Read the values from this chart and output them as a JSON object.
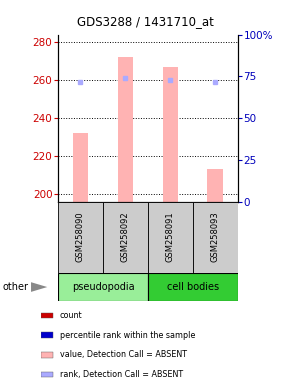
{
  "title": "GDS3288 / 1431710_at",
  "samples": [
    "GSM258090",
    "GSM258092",
    "GSM258091",
    "GSM258093"
  ],
  "bar_values": [
    232,
    272,
    267,
    213
  ],
  "rank_values": [
    259,
    261,
    260,
    259
  ],
  "bar_color": "#ffb3b3",
  "rank_color": "#aaaaff",
  "ylim_left": [
    196,
    284
  ],
  "ylim_right": [
    0,
    100
  ],
  "yticks_left": [
    200,
    220,
    240,
    260,
    280
  ],
  "yticks_right": [
    0,
    25,
    50,
    75,
    100
  ],
  "ytick_labels_right": [
    "0",
    "25",
    "50",
    "75",
    "100%"
  ],
  "group_colors": {
    "pseudopodia": "#99ee99",
    "cell bodies": "#33cc33"
  },
  "legend_items": [
    {
      "label": "count",
      "color": "#cc0000"
    },
    {
      "label": "percentile rank within the sample",
      "color": "#0000cc"
    },
    {
      "label": "value, Detection Call = ABSENT",
      "color": "#ffb3b3"
    },
    {
      "label": "rank, Detection Call = ABSENT",
      "color": "#aaaaff"
    }
  ],
  "other_label": "other",
  "bar_bottom": 196,
  "bar_width": 0.35,
  "left_tick_color": "#cc0000",
  "right_tick_color": "#0000bb"
}
